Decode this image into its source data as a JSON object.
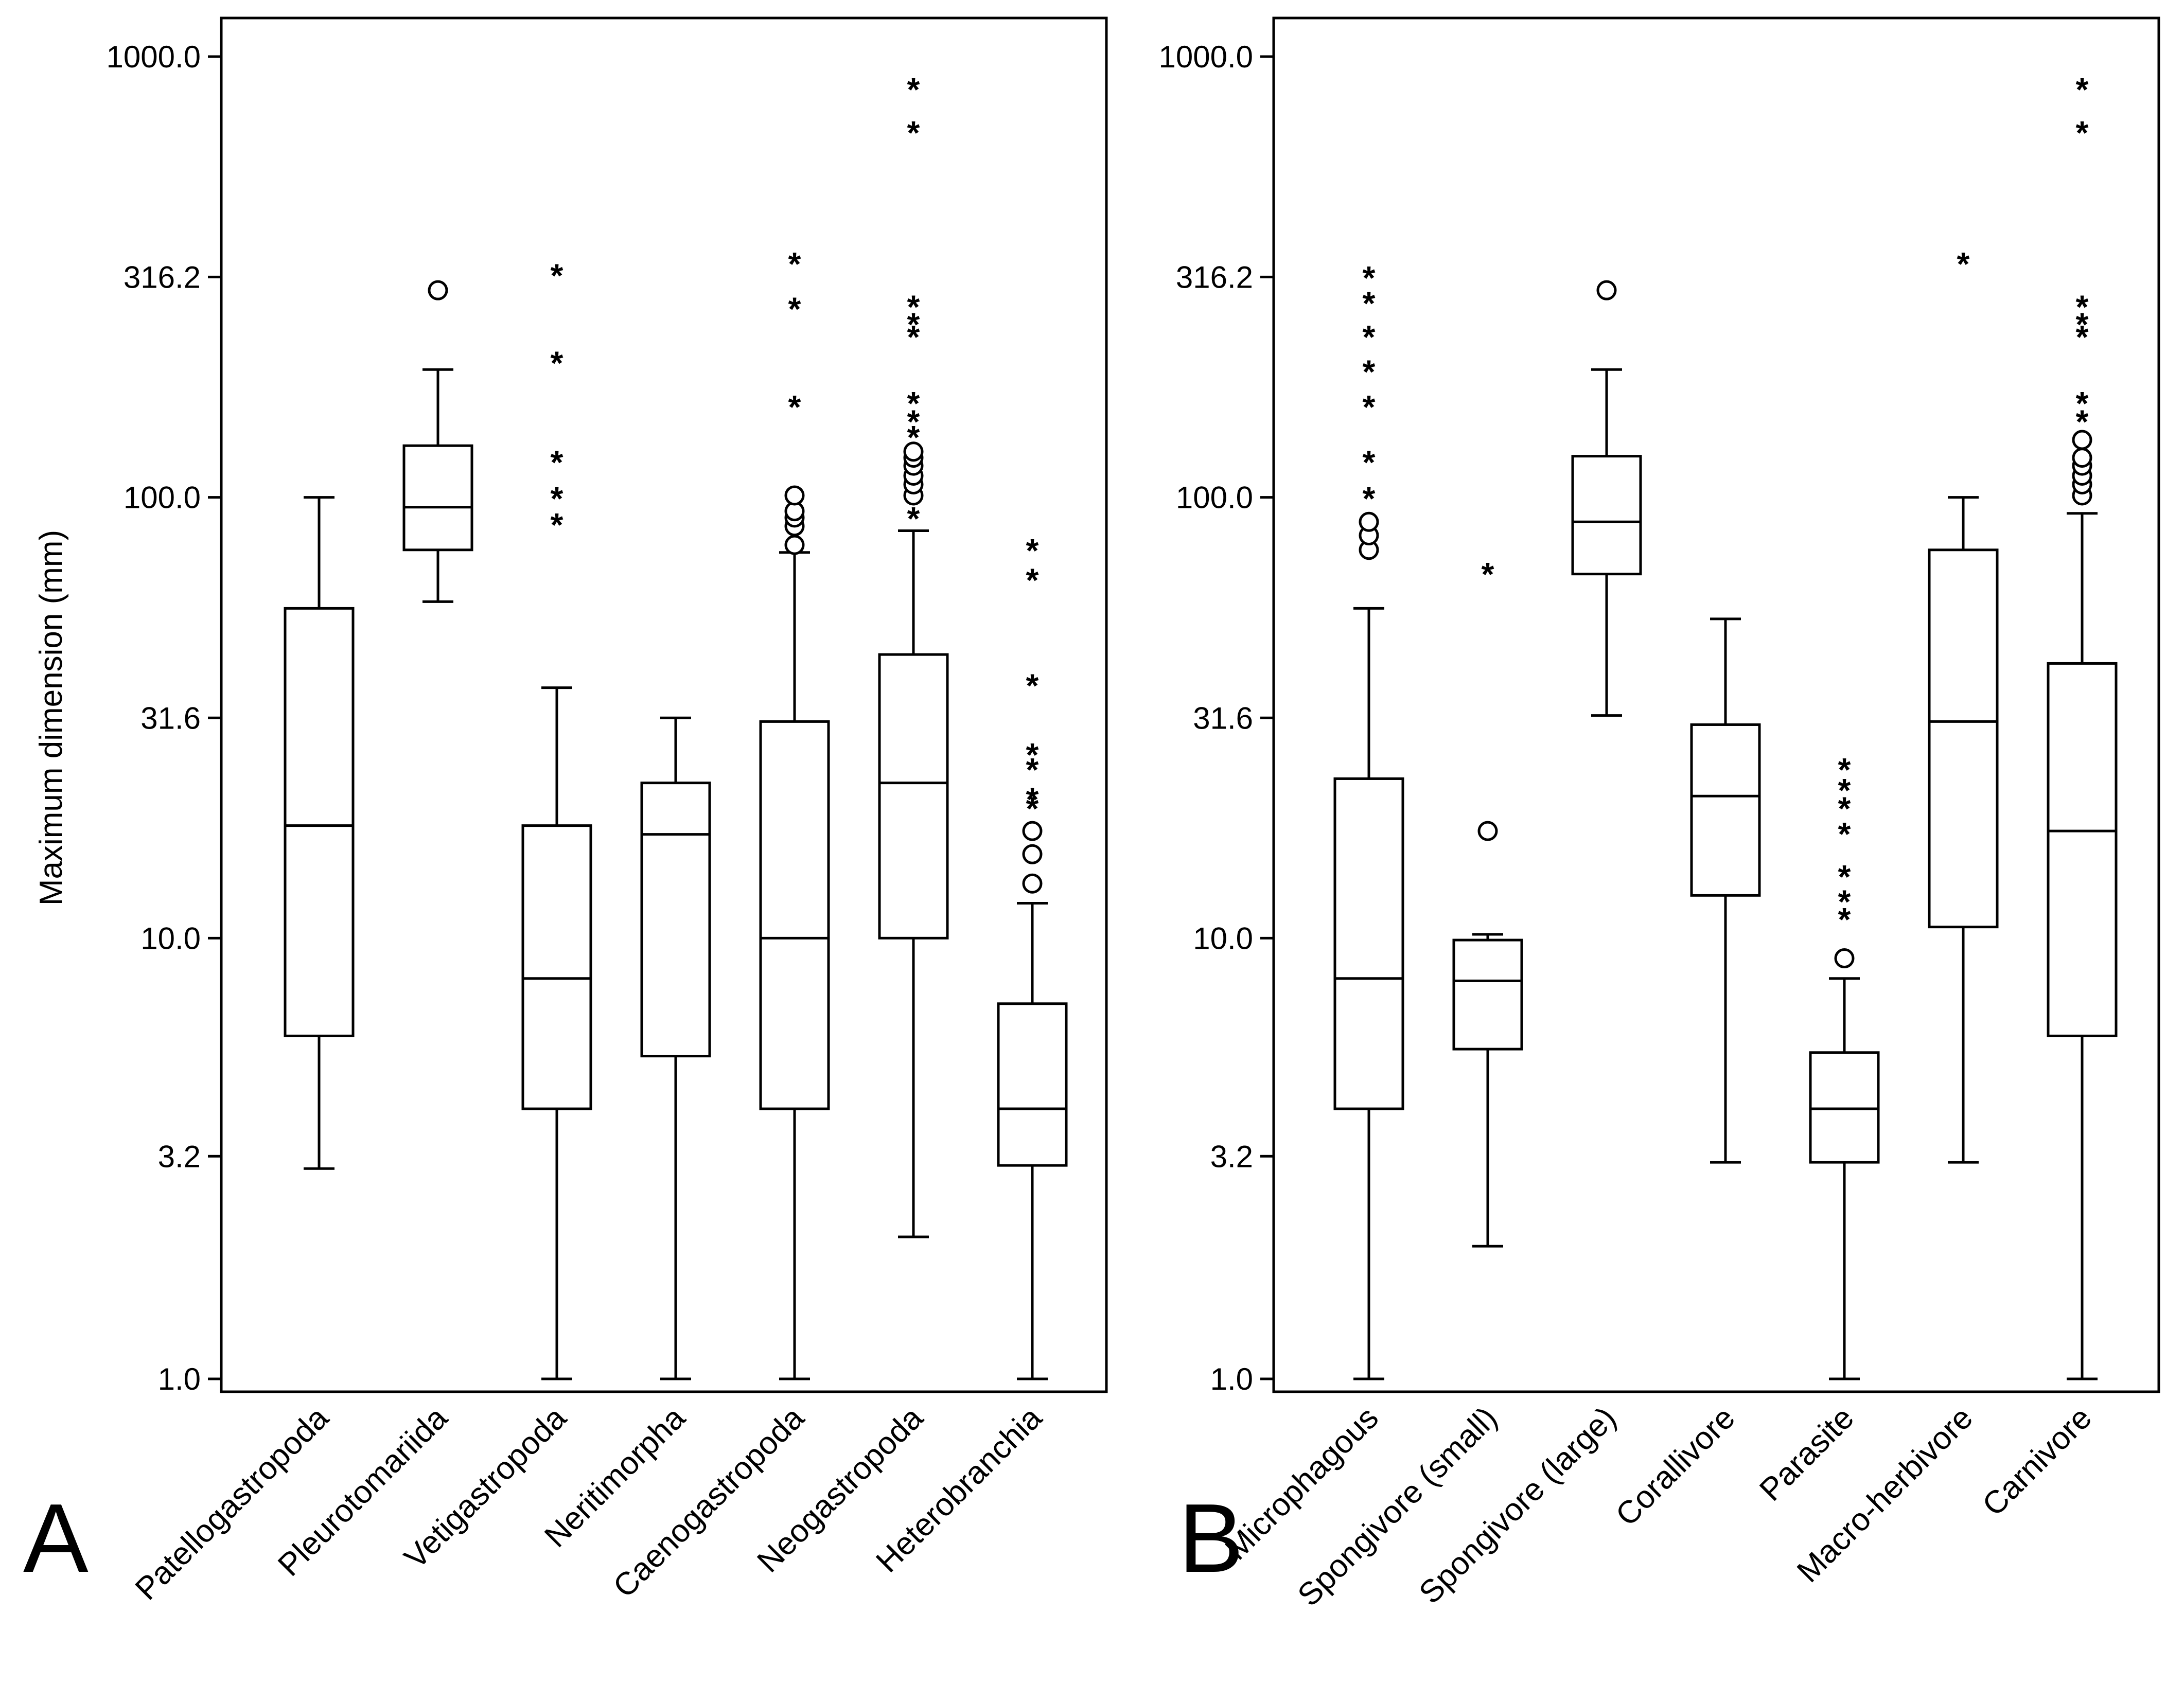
{
  "chart_data": [
    {
      "type": "box",
      "panel_label": "A",
      "ylabel": "Maximum dimension (mm)",
      "yscale": "log",
      "ylim": [
        1.0,
        1000.0
      ],
      "yticks": [
        1.0,
        3.2,
        10.0,
        31.6,
        100.0,
        316.2,
        1000.0
      ],
      "ytick_labels": [
        "1.0",
        "3.2",
        "10.0",
        "31.6",
        "100.0",
        "316.2",
        "1000.0"
      ],
      "categories": [
        "Patellogastropoda",
        "Pleurotomariida",
        "Vetigastropoda",
        "Neritimorpha",
        "Caenogastropoda",
        "Neogastropoda",
        "Heterobranchia"
      ],
      "boxes": [
        {
          "name": "Patellogastropoda",
          "whisker_low": 3.0,
          "q1": 6.0,
          "median": 18.0,
          "q3": 56.0,
          "whisker_high": 100.0,
          "outliers": [],
          "extremes": []
        },
        {
          "name": "Pleurotomariida",
          "whisker_low": 58.0,
          "q1": 76.0,
          "median": 95.0,
          "q3": 131.0,
          "whisker_high": 195.0,
          "outliers": [
            295.0
          ],
          "extremes": []
        },
        {
          "name": "Vetigastropoda",
          "whisker_low": 1.0,
          "q1": 4.1,
          "median": 8.1,
          "q3": 18.0,
          "whisker_high": 37.0,
          "outliers": [],
          "extremes": [
            88.0,
            101.0,
            122.0,
            205.0,
            324.0
          ]
        },
        {
          "name": "Neritimorpha",
          "whisker_low": 1.0,
          "q1": 5.4,
          "median": 17.2,
          "q3": 22.5,
          "whisker_high": 31.6,
          "outliers": [],
          "extremes": []
        },
        {
          "name": "Caenogastropoda",
          "whisker_low": 1.0,
          "q1": 4.1,
          "median": 10.0,
          "q3": 31.0,
          "whisker_high": 75.0,
          "outliers": [
            78.0,
            86.0,
            90.0,
            93.0,
            101.0
          ],
          "extremes": [
            163.0,
            272.0,
            344.0
          ]
        },
        {
          "name": "Neogastropoda",
          "whisker_low": 2.1,
          "q1": 10.0,
          "median": 22.5,
          "q3": 44.0,
          "whisker_high": 84.0,
          "outliers": [
            101.0,
            107.0,
            112.0,
            118.0,
            123.0,
            127.0
          ],
          "extremes": [
            91.0,
            139.0,
            151.0,
            166.0,
            235.0,
            251.0,
            275.0,
            683.0,
            856.0
          ]
        },
        {
          "name": "Heterobranchia",
          "whisker_low": 1.0,
          "q1": 3.05,
          "median": 4.1,
          "q3": 7.1,
          "whisker_high": 12.0,
          "outliers": [
            13.3,
            15.5,
            17.5
          ],
          "extremes": [
            20.0,
            21.0,
            24.5,
            26.5,
            38.0,
            66.0,
            77.0
          ]
        }
      ]
    },
    {
      "type": "box",
      "panel_label": "B",
      "ylabel": "",
      "yscale": "log",
      "ylim": [
        1.0,
        1000.0
      ],
      "yticks": [
        1.0,
        3.2,
        10.0,
        31.6,
        100.0,
        316.2,
        1000.0
      ],
      "ytick_labels": [
        "1.0",
        "3.2",
        "10.0",
        "31.6",
        "100.0",
        "316.2",
        "1000.0"
      ],
      "categories": [
        "Microphagous",
        "Spongivore (small)",
        "Spongivore (large)",
        "Corallivore",
        "Parasite",
        "Macro-herbivore",
        "Carnivore"
      ],
      "boxes": [
        {
          "name": "Microphagous",
          "whisker_low": 1.0,
          "q1": 4.1,
          "median": 8.1,
          "q3": 23.0,
          "whisker_high": 56.0,
          "outliers": [
            76.0,
            82.0,
            88.0
          ],
          "extremes": [
            101.0,
            122.0,
            163.0,
            196.0,
            235.0,
            280.0,
            320.0
          ]
        },
        {
          "name": "Spongivore (small)",
          "whisker_low": 2.0,
          "q1": 5.6,
          "median": 8.0,
          "q3": 9.9,
          "whisker_high": 10.2,
          "outliers": [
            17.5
          ],
          "extremes": [
            68.0
          ]
        },
        {
          "name": "Spongivore (large)",
          "whisker_low": 32.0,
          "q1": 67.0,
          "median": 88.0,
          "q3": 124.0,
          "whisker_high": 195.0,
          "outliers": [
            295.0
          ],
          "extremes": []
        },
        {
          "name": "Corallivore",
          "whisker_low": 3.1,
          "q1": 12.5,
          "median": 21.0,
          "q3": 30.5,
          "whisker_high": 53.0,
          "outliers": [],
          "extremes": []
        },
        {
          "name": "Parasite",
          "whisker_low": 1.0,
          "q1": 3.1,
          "median": 4.1,
          "q3": 5.5,
          "whisker_high": 8.1,
          "outliers": [
            9.0
          ],
          "extremes": [
            11.2,
            12.3,
            14.0,
            17.5,
            20.0,
            22.0,
            24.5
          ]
        },
        {
          "name": "Macro-herbivore",
          "whisker_low": 3.1,
          "q1": 10.6,
          "median": 31.0,
          "q3": 76.0,
          "whisker_high": 100.0,
          "outliers": [],
          "extremes": [
            344.0
          ]
        },
        {
          "name": "Carnivore",
          "whisker_low": 1.0,
          "q1": 6.0,
          "median": 17.5,
          "q3": 42.0,
          "whisker_high": 92.0,
          "outliers": [
            101.0,
            107.0,
            112.0,
            118.0,
            123.0,
            135.0
          ],
          "extremes": [
            151.0,
            166.0,
            235.0,
            251.0,
            275.0,
            683.0,
            856.0
          ]
        }
      ]
    }
  ]
}
